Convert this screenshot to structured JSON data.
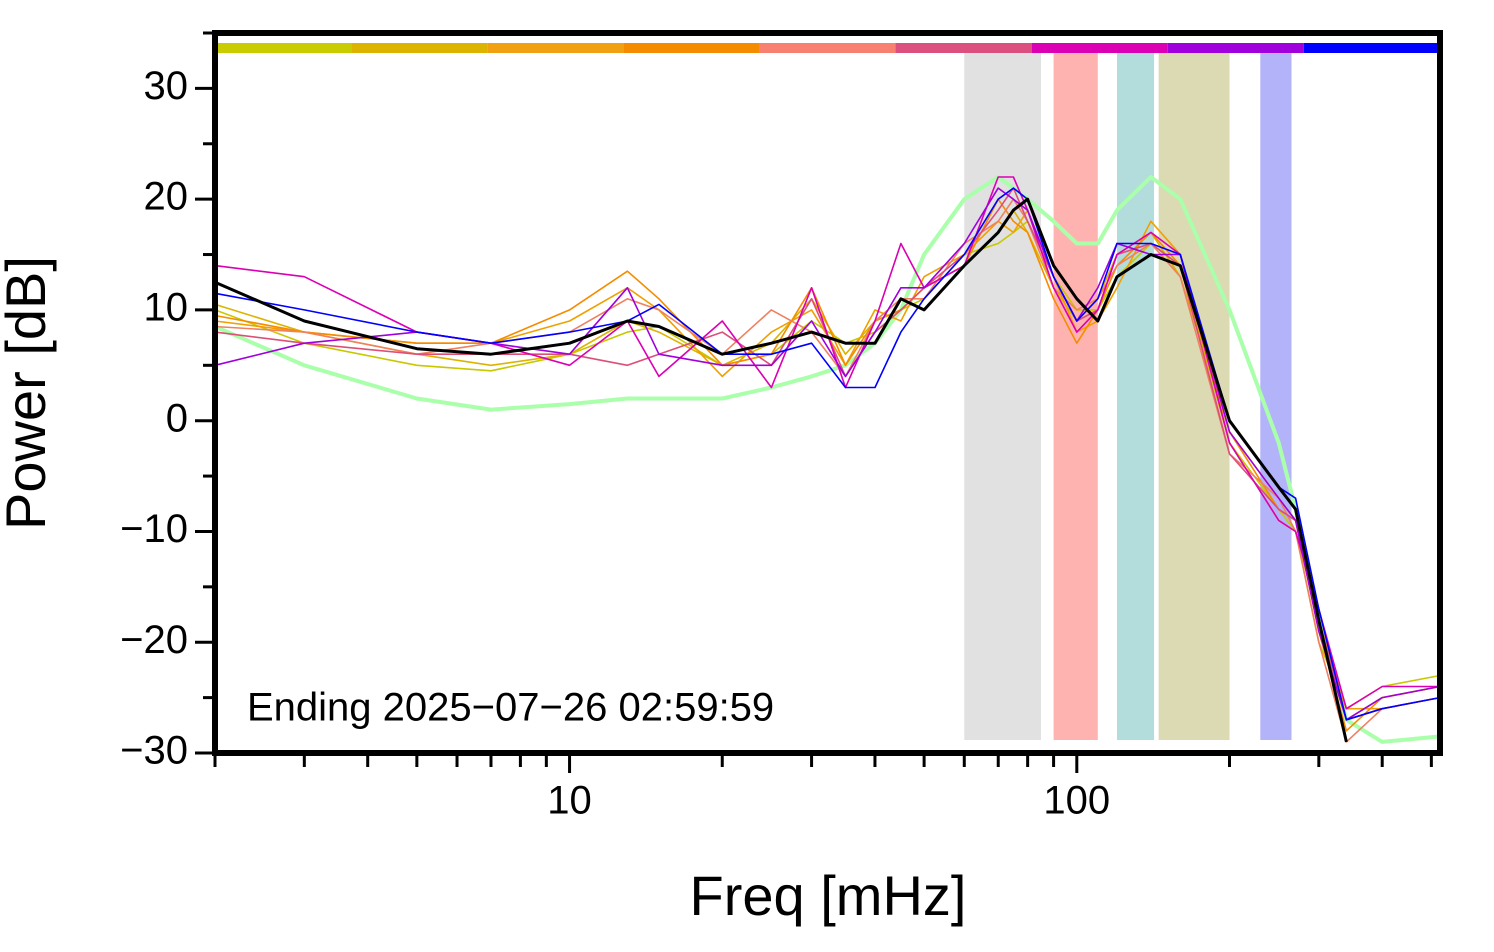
{
  "chart_data": {
    "type": "line",
    "annotation": "Ending 2025−07−26 02:59:59",
    "xlabel": "Freq [mHz]",
    "ylabel": "Power [dB]",
    "xscale": "log",
    "xlim": [
      2,
      520
    ],
    "ylim": [
      -30,
      35
    ],
    "xticks": [
      10,
      100
    ],
    "xminor": [
      2,
      3,
      4,
      5,
      6,
      7,
      8,
      9,
      20,
      30,
      40,
      50,
      60,
      70,
      80,
      90,
      200,
      300,
      400,
      500
    ],
    "yticks": [
      {
        "value": -30,
        "label": "−30"
      },
      {
        "value": -20,
        "label": "−20"
      },
      {
        "value": -10,
        "label": "−10"
      },
      0,
      10,
      20,
      30
    ],
    "yminor": [
      -25,
      -15,
      -5,
      5,
      15,
      25,
      35
    ],
    "bands": [
      {
        "x0": 60,
        "x1": 85,
        "color": "#e1e1e1"
      },
      {
        "x0": 90,
        "x1": 110,
        "color": "#ffb3b0"
      },
      {
        "x0": 120,
        "x1": 142,
        "color": "#b3dcdd"
      },
      {
        "x0": 145,
        "x1": 200,
        "color": "#dbdab3"
      },
      {
        "x0": 230,
        "x1": 265,
        "color": "#b3b3fa"
      }
    ],
    "top_bar_colors": [
      "#c8cc00",
      "#dcb400",
      "#f0a010",
      "#f58c00",
      "#f88070",
      "#dc5080",
      "#dc00b4",
      "#a000dc",
      "#0000ff"
    ],
    "x": [
      2,
      3,
      5,
      7,
      10,
      13,
      15,
      20,
      25,
      30,
      35,
      40,
      45,
      50,
      60,
      70,
      75,
      80,
      90,
      100,
      110,
      120,
      140,
      160,
      200,
      250,
      270,
      300,
      340,
      400,
      520
    ],
    "series": [
      {
        "color": "#aaffaa",
        "linewidth": 4,
        "values": [
          8.5,
          5,
          2,
          1,
          1.5,
          2,
          2,
          2,
          3,
          4,
          5,
          7,
          10,
          15,
          20,
          22,
          21,
          20,
          18,
          16,
          16,
          19,
          22,
          20,
          10,
          -2,
          -8,
          -18,
          -27,
          -29,
          -28.5
        ]
      },
      {
        "color": "#c8c800",
        "linewidth": 1.6,
        "values": [
          10,
          7,
          5,
          4.5,
          6,
          8,
          8.5,
          5,
          6,
          9,
          7,
          8,
          10,
          11,
          15,
          16,
          17,
          18,
          13,
          10,
          10,
          13,
          16,
          14,
          -2,
          -8,
          -10,
          -20,
          -26,
          -24,
          -23
        ]
      },
      {
        "color": "#dcb400",
        "linewidth": 1.6,
        "values": [
          10.5,
          8,
          6,
          5,
          6,
          9,
          8,
          5,
          7,
          11,
          6,
          9,
          10,
          12,
          14,
          17,
          19,
          17,
          12,
          9,
          11,
          15,
          17,
          13,
          -1,
          -7,
          -9,
          -19,
          -27,
          -25,
          -24
        ]
      },
      {
        "color": "#f0a000",
        "linewidth": 1.6,
        "values": [
          9,
          8,
          7,
          7,
          9,
          12,
          10,
          4,
          8,
          10,
          5,
          10,
          9,
          13,
          15,
          18,
          17,
          19,
          13,
          8,
          9,
          12,
          18,
          15,
          -2,
          -9,
          -10,
          -18,
          -26,
          -26,
          -25
        ]
      },
      {
        "color": "#f58c00",
        "linewidth": 1.6,
        "values": [
          9.5,
          8,
          7,
          7,
          10,
          13.5,
          11,
          5,
          6,
          12,
          5,
          9,
          10,
          12,
          14,
          20,
          18,
          17,
          11,
          7,
          10,
          14,
          17,
          14,
          -1,
          -8,
          -9,
          -19,
          -28,
          -25,
          -24
        ]
      },
      {
        "color": "#f08060",
        "linewidth": 1.6,
        "values": [
          8.5,
          8,
          6,
          7,
          8,
          11,
          10,
          6,
          10,
          8,
          4,
          9,
          11,
          11,
          16,
          18,
          20,
          18,
          12,
          10,
          11,
          14,
          16,
          13,
          -3,
          -7,
          -10,
          -20,
          -29,
          -26,
          -25
        ]
      },
      {
        "color": "#dc5078",
        "linewidth": 1.6,
        "values": [
          8,
          7,
          6,
          6,
          6,
          5,
          6,
          8,
          5,
          11,
          4,
          8,
          10,
          12,
          15,
          19,
          21,
          18,
          13,
          9,
          10,
          15,
          16,
          14,
          -3,
          -8,
          -9,
          -18,
          -27,
          -26,
          -25
        ]
      },
      {
        "color": "#dc00b4",
        "linewidth": 1.6,
        "values": [
          14,
          13,
          8,
          7,
          5,
          9,
          4,
          9,
          3,
          12,
          3,
          9,
          16,
          12,
          14,
          22,
          22,
          19,
          12,
          8,
          10,
          15,
          17,
          15,
          -2,
          -9,
          -10,
          -17,
          -26,
          -24,
          -24
        ]
      },
      {
        "color": "#a000dc",
        "linewidth": 1.6,
        "values": [
          5,
          7,
          8,
          7,
          6,
          12,
          6,
          5,
          5,
          9,
          4,
          8,
          12,
          12,
          16,
          21,
          20,
          19,
          13,
          9,
          12,
          16,
          15,
          15,
          -1,
          -7,
          -9,
          -19,
          -27,
          -25,
          -24
        ]
      },
      {
        "color": "#0000ff",
        "linewidth": 1.6,
        "values": [
          11.5,
          10,
          8,
          7,
          8,
          9,
          10.5,
          6,
          6,
          7,
          3,
          3,
          8,
          11,
          15,
          20,
          21,
          20,
          13,
          9,
          11,
          16,
          16,
          15,
          0,
          -6,
          -7,
          -17,
          -27,
          -26,
          -25
        ]
      },
      {
        "color": "#000000",
        "linewidth": 3,
        "values": [
          12.5,
          9,
          6.5,
          6,
          7,
          9,
          8.5,
          6,
          7,
          8,
          7,
          7,
          11,
          10,
          14,
          17,
          19,
          20,
          14,
          11,
          9,
          13,
          15,
          14,
          0,
          -6,
          -8,
          -18,
          -29,
          null,
          null
        ]
      }
    ]
  }
}
